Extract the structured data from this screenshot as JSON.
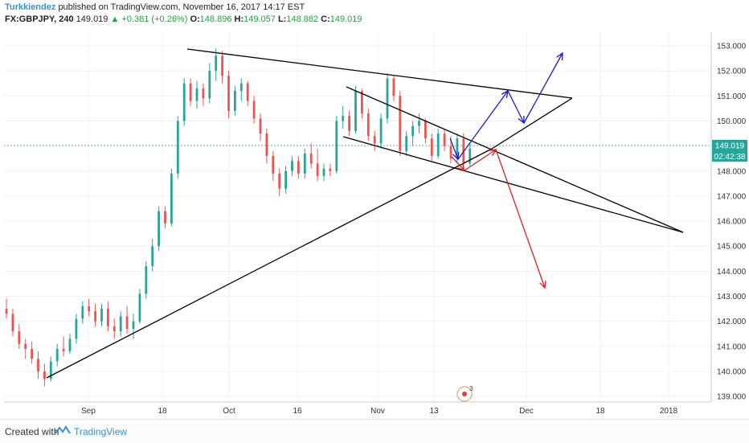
{
  "header": {
    "author": "Turkkiendez",
    "published_text": "published on TradingView.com, November 16, 2017 14:17 EST",
    "symbol": "FX:GBPJPY, 240",
    "last": "149.019",
    "change": "▲ +0.381 (+0.26%)",
    "o_label": "O:",
    "o_value": "148.896",
    "h_label": "H:",
    "h_value": "149.057",
    "l_label": "L:",
    "l_value": "148.882",
    "c_label": "C:",
    "c_value": "149.019"
  },
  "footer": {
    "created_with": "Created with",
    "brand": "TradingView"
  },
  "colors": {
    "up": "#26a69a",
    "down": "#ef5350",
    "trendline": "#000000",
    "bull_arrow": "#1a1adb",
    "bear_arrow": "#e02020",
    "price_tag": "#26a69a",
    "grid": "#eef0f3"
  },
  "chart_data": {
    "type": "candlestick",
    "y_ticks": [
      "153.000",
      "152.000",
      "151.000",
      "150.000",
      "149.000",
      "148.000",
      "147.000",
      "146.000",
      "145.000",
      "144.000",
      "143.000",
      "142.000",
      "141.000",
      "140.000",
      "139.000"
    ],
    "ylim": [
      138.5,
      153.3
    ],
    "x_ticks": [
      "Sep",
      "18",
      "Oct",
      "16",
      "Nov",
      "13",
      "Dec",
      "18",
      "2018"
    ],
    "current_price": "149.019",
    "countdown": "02:42:38",
    "event_marker": "3",
    "series": [
      {
        "t": 0,
        "o": 142.5,
        "h": 142.9,
        "l": 142.1,
        "c": 142.3
      },
      {
        "t": 2,
        "o": 142.3,
        "h": 142.5,
        "l": 141.4,
        "c": 141.6
      },
      {
        "t": 4,
        "o": 141.6,
        "h": 141.9,
        "l": 140.9,
        "c": 141.1
      },
      {
        "t": 6,
        "o": 141.1,
        "h": 141.3,
        "l": 140.5,
        "c": 140.9
      },
      {
        "t": 8,
        "o": 140.9,
        "h": 141.2,
        "l": 140.3,
        "c": 140.5
      },
      {
        "t": 10,
        "o": 140.5,
        "h": 140.8,
        "l": 139.7,
        "c": 140.0
      },
      {
        "t": 12,
        "o": 140.0,
        "h": 140.3,
        "l": 139.4,
        "c": 139.7
      },
      {
        "t": 14,
        "o": 139.7,
        "h": 140.6,
        "l": 139.6,
        "c": 140.4
      },
      {
        "t": 16,
        "o": 140.4,
        "h": 141.1,
        "l": 140.2,
        "c": 140.9
      },
      {
        "t": 18,
        "o": 140.9,
        "h": 141.4,
        "l": 140.6,
        "c": 140.8
      },
      {
        "t": 20,
        "o": 140.8,
        "h": 141.5,
        "l": 140.7,
        "c": 141.3
      },
      {
        "t": 22,
        "o": 141.3,
        "h": 142.3,
        "l": 141.1,
        "c": 142.1
      },
      {
        "t": 24,
        "o": 142.1,
        "h": 142.8,
        "l": 141.9,
        "c": 142.6
      },
      {
        "t": 26,
        "o": 142.6,
        "h": 142.9,
        "l": 142.2,
        "c": 142.4
      },
      {
        "t": 28,
        "o": 142.4,
        "h": 142.7,
        "l": 141.8,
        "c": 142.0
      },
      {
        "t": 30,
        "o": 142.0,
        "h": 142.7,
        "l": 141.8,
        "c": 142.5
      },
      {
        "t": 32,
        "o": 142.5,
        "h": 142.8,
        "l": 141.6,
        "c": 141.8
      },
      {
        "t": 34,
        "o": 141.8,
        "h": 142.1,
        "l": 141.3,
        "c": 141.6
      },
      {
        "t": 36,
        "o": 141.6,
        "h": 142.4,
        "l": 141.4,
        "c": 142.2
      },
      {
        "t": 38,
        "o": 142.2,
        "h": 142.6,
        "l": 141.5,
        "c": 141.7
      },
      {
        "t": 40,
        "o": 141.7,
        "h": 142.3,
        "l": 141.3,
        "c": 142.0
      },
      {
        "t": 42,
        "o": 142.0,
        "h": 143.3,
        "l": 141.9,
        "c": 143.1
      },
      {
        "t": 44,
        "o": 143.1,
        "h": 144.4,
        "l": 142.9,
        "c": 144.2
      },
      {
        "t": 46,
        "o": 144.2,
        "h": 145.3,
        "l": 144.0,
        "c": 145.0
      },
      {
        "t": 48,
        "o": 145.0,
        "h": 146.6,
        "l": 144.8,
        "c": 146.4
      },
      {
        "t": 50,
        "o": 146.4,
        "h": 146.6,
        "l": 145.7,
        "c": 145.9
      },
      {
        "t": 52,
        "o": 145.9,
        "h": 148.1,
        "l": 145.8,
        "c": 147.9
      },
      {
        "t": 54,
        "o": 147.9,
        "h": 150.2,
        "l": 147.7,
        "c": 150.0
      },
      {
        "t": 56,
        "o": 150.0,
        "h": 151.7,
        "l": 149.8,
        "c": 151.5
      },
      {
        "t": 58,
        "o": 151.5,
        "h": 151.7,
        "l": 150.6,
        "c": 150.8
      },
      {
        "t": 60,
        "o": 150.8,
        "h": 151.6,
        "l": 150.5,
        "c": 151.3
      },
      {
        "t": 62,
        "o": 151.3,
        "h": 151.5,
        "l": 150.6,
        "c": 150.9
      },
      {
        "t": 64,
        "o": 150.9,
        "h": 152.3,
        "l": 150.7,
        "c": 152.0
      },
      {
        "t": 66,
        "o": 152.0,
        "h": 152.9,
        "l": 151.6,
        "c": 152.6
      },
      {
        "t": 68,
        "o": 152.6,
        "h": 152.8,
        "l": 151.5,
        "c": 151.8
      },
      {
        "t": 70,
        "o": 151.8,
        "h": 152.0,
        "l": 150.1,
        "c": 150.4
      },
      {
        "t": 72,
        "o": 150.4,
        "h": 151.4,
        "l": 150.2,
        "c": 151.2
      },
      {
        "t": 74,
        "o": 151.2,
        "h": 151.7,
        "l": 150.8,
        "c": 151.5
      },
      {
        "t": 76,
        "o": 151.5,
        "h": 151.6,
        "l": 150.6,
        "c": 150.8
      },
      {
        "t": 78,
        "o": 150.8,
        "h": 151.0,
        "l": 149.9,
        "c": 150.1
      },
      {
        "t": 80,
        "o": 150.1,
        "h": 150.3,
        "l": 149.2,
        "c": 149.5
      },
      {
        "t": 82,
        "o": 149.5,
        "h": 149.7,
        "l": 148.3,
        "c": 148.6
      },
      {
        "t": 84,
        "o": 148.6,
        "h": 148.8,
        "l": 147.6,
        "c": 147.9
      },
      {
        "t": 86,
        "o": 147.9,
        "h": 148.1,
        "l": 147.0,
        "c": 147.3
      },
      {
        "t": 88,
        "o": 147.3,
        "h": 148.2,
        "l": 147.1,
        "c": 148.0
      },
      {
        "t": 90,
        "o": 148.0,
        "h": 148.6,
        "l": 147.8,
        "c": 148.4
      },
      {
        "t": 92,
        "o": 148.4,
        "h": 148.6,
        "l": 147.7,
        "c": 147.9
      },
      {
        "t": 94,
        "o": 147.9,
        "h": 148.9,
        "l": 147.7,
        "c": 148.7
      },
      {
        "t": 96,
        "o": 148.7,
        "h": 149.1,
        "l": 148.1,
        "c": 148.3
      },
      {
        "t": 98,
        "o": 148.3,
        "h": 148.9,
        "l": 147.6,
        "c": 147.8
      },
      {
        "t": 100,
        "o": 147.8,
        "h": 148.3,
        "l": 147.6,
        "c": 148.1
      },
      {
        "t": 102,
        "o": 148.1,
        "h": 148.3,
        "l": 147.8,
        "c": 148.0
      },
      {
        "t": 104,
        "o": 148.0,
        "h": 150.2,
        "l": 147.9,
        "c": 150.0
      },
      {
        "t": 106,
        "o": 150.0,
        "h": 150.6,
        "l": 149.7,
        "c": 150.2
      },
      {
        "t": 108,
        "o": 150.2,
        "h": 150.4,
        "l": 149.4,
        "c": 149.6
      },
      {
        "t": 110,
        "o": 149.6,
        "h": 151.4,
        "l": 149.5,
        "c": 151.2
      },
      {
        "t": 112,
        "o": 151.2,
        "h": 151.3,
        "l": 150.1,
        "c": 150.3
      },
      {
        "t": 114,
        "o": 150.3,
        "h": 150.5,
        "l": 149.2,
        "c": 149.4
      },
      {
        "t": 116,
        "o": 149.4,
        "h": 149.6,
        "l": 148.8,
        "c": 149.1
      },
      {
        "t": 118,
        "o": 149.1,
        "h": 150.3,
        "l": 148.9,
        "c": 150.1
      },
      {
        "t": 120,
        "o": 150.1,
        "h": 151.9,
        "l": 149.9,
        "c": 151.7
      },
      {
        "t": 122,
        "o": 151.7,
        "h": 151.8,
        "l": 150.8,
        "c": 151.0
      },
      {
        "t": 124,
        "o": 151.0,
        "h": 151.2,
        "l": 148.6,
        "c": 148.8
      },
      {
        "t": 126,
        "o": 148.8,
        "h": 149.6,
        "l": 148.6,
        "c": 149.4
      },
      {
        "t": 128,
        "o": 149.4,
        "h": 150.0,
        "l": 149.0,
        "c": 149.8
      },
      {
        "t": 130,
        "o": 149.8,
        "h": 150.3,
        "l": 149.5,
        "c": 150.0
      },
      {
        "t": 132,
        "o": 150.0,
        "h": 150.1,
        "l": 149.1,
        "c": 149.3
      },
      {
        "t": 134,
        "o": 149.3,
        "h": 149.5,
        "l": 148.4,
        "c": 148.6
      },
      {
        "t": 136,
        "o": 148.6,
        "h": 149.7,
        "l": 148.5,
        "c": 149.5
      },
      {
        "t": 138,
        "o": 149.5,
        "h": 149.7,
        "l": 148.8,
        "c": 149.0
      },
      {
        "t": 140,
        "o": 149.0,
        "h": 149.4,
        "l": 148.3,
        "c": 148.5
      },
      {
        "t": 142,
        "o": 148.5,
        "h": 149.5,
        "l": 148.3,
        "c": 149.3
      },
      {
        "t": 144,
        "o": 149.3,
        "h": 149.5,
        "l": 148.1,
        "c": 148.3
      },
      {
        "t": 146,
        "o": 148.3,
        "h": 149.1,
        "l": 148.2,
        "c": 148.9
      }
    ]
  }
}
